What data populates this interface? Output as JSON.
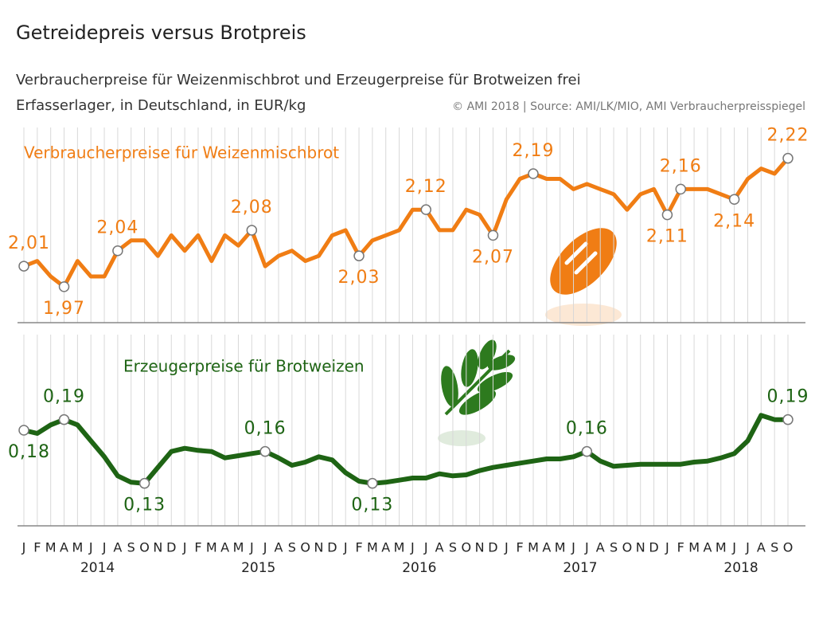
{
  "chart_data": {
    "type": "line",
    "title": "Getreidepreis versus Brotpreis",
    "subtitle": [
      "Verbraucherpreise für Weizenmischbrot und Erzeugerpreise für Brotweizen frei",
      "Erfasserlager, in Deutschland, in EUR/kg"
    ],
    "source": "© AMI 2018 | Source: AMI/LK/MIO, AMI Verbraucherpreisspiegel",
    "categories": [
      "J",
      "F",
      "M",
      "A",
      "M",
      "J",
      "J",
      "A",
      "S",
      "O",
      "N",
      "D",
      "J",
      "F",
      "M",
      "A",
      "M",
      "J",
      "J",
      "A",
      "S",
      "O",
      "N",
      "D",
      "J",
      "F",
      "M",
      "A",
      "M",
      "J",
      "J",
      "A",
      "S",
      "O",
      "N",
      "D",
      "J",
      "F",
      "M",
      "A",
      "M",
      "J",
      "J",
      "A",
      "S",
      "O",
      "N",
      "D",
      "J",
      "F",
      "M",
      "A",
      "M",
      "J",
      "J",
      "A",
      "S",
      "O"
    ],
    "years": [
      "2014",
      "2015",
      "2016",
      "2017",
      "2018"
    ],
    "series": [
      {
        "name": "Verbraucherpreise für Weizenmischbrot",
        "color": "#f07d14",
        "ylim": [
          1.9,
          2.28
        ],
        "values": [
          2.01,
          2.02,
          1.99,
          1.97,
          2.02,
          1.99,
          1.99,
          2.04,
          2.06,
          2.06,
          2.03,
          2.07,
          2.04,
          2.07,
          2.02,
          2.07,
          2.05,
          2.08,
          2.01,
          2.03,
          2.04,
          2.02,
          2.03,
          2.07,
          2.08,
          2.03,
          2.06,
          2.07,
          2.08,
          2.12,
          2.12,
          2.08,
          2.08,
          2.12,
          2.11,
          2.07,
          2.14,
          2.18,
          2.19,
          2.18,
          2.18,
          2.16,
          2.17,
          2.16,
          2.15,
          2.12,
          2.15,
          2.16,
          2.11,
          2.16,
          2.16,
          2.16,
          2.15,
          2.14,
          2.18,
          2.2,
          2.19,
          2.22
        ],
        "value_labels": [
          "2,01",
          null,
          null,
          "1,97",
          null,
          null,
          null,
          "2,04",
          null,
          null,
          null,
          null,
          null,
          null,
          null,
          null,
          null,
          "2,08",
          null,
          null,
          null,
          null,
          null,
          null,
          null,
          "2,03",
          null,
          null,
          null,
          null,
          "2,12",
          null,
          null,
          null,
          null,
          "2,07",
          null,
          null,
          "2,19",
          null,
          null,
          null,
          null,
          null,
          null,
          null,
          null,
          null,
          "2,11",
          "2,16",
          null,
          null,
          null,
          "2,14",
          null,
          null,
          null,
          "2,22"
        ]
      },
      {
        "name": "Erzeugerpreise für Brotweizen",
        "color": "#1e6414",
        "ylim": [
          0.09,
          0.27
        ],
        "values": [
          0.18,
          0.177,
          0.185,
          0.19,
          0.185,
          0.17,
          0.155,
          0.137,
          0.131,
          0.13,
          0.145,
          0.16,
          0.163,
          0.161,
          0.16,
          0.154,
          0.156,
          0.158,
          0.16,
          0.154,
          0.147,
          0.15,
          0.155,
          0.152,
          0.14,
          0.132,
          0.13,
          0.131,
          0.133,
          0.135,
          0.135,
          0.139,
          0.137,
          0.138,
          0.142,
          0.145,
          0.147,
          0.149,
          0.151,
          0.153,
          0.153,
          0.155,
          0.16,
          0.151,
          0.146,
          0.147,
          0.148,
          0.148,
          0.148,
          0.148,
          0.15,
          0.151,
          0.154,
          0.158,
          0.17,
          0.194,
          0.19,
          0.19
        ],
        "value_labels": [
          "0,18",
          null,
          null,
          "0,19",
          null,
          null,
          null,
          null,
          null,
          "0,13",
          null,
          null,
          null,
          null,
          null,
          null,
          null,
          null,
          "0,16",
          null,
          null,
          null,
          null,
          null,
          null,
          null,
          "0,13",
          null,
          null,
          null,
          null,
          null,
          null,
          null,
          null,
          null,
          null,
          null,
          null,
          null,
          null,
          null,
          "0,16",
          null,
          null,
          null,
          null,
          null,
          null,
          null,
          null,
          null,
          null,
          null,
          null,
          null,
          null,
          "0,19"
        ]
      }
    ]
  }
}
